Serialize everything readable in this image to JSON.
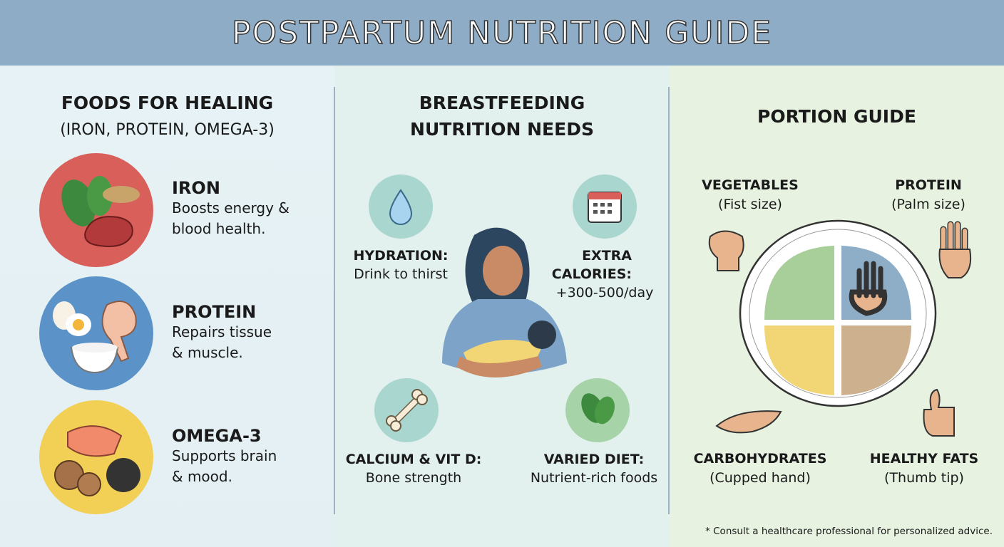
{
  "title": "POSTPARTUM NUTRITION GUIDE",
  "colors": {
    "header": "#8eacc5",
    "iron": "#d9605a",
    "protein": "#5b93c9",
    "omega3": "#f2cf55",
    "vegetables": "#a8cf9a",
    "protein_quadrant": "#8eaec8",
    "carbs": "#f2d574",
    "fats": "#cdb08e"
  },
  "healing": {
    "heading": "FOODS FOR HEALING",
    "subheading": "(IRON, PROTEIN, OMEGA-3)",
    "items": [
      {
        "title": "IRON",
        "desc1": "Boosts energy &",
        "desc2": "blood health.",
        "icon": "spinach-steak-lentils-icon"
      },
      {
        "title": "PROTEIN",
        "desc1": "Repairs tissue",
        "desc2": "& muscle.",
        "icon": "egg-chicken-yogurt-icon"
      },
      {
        "title": "OMEGA-3",
        "desc1": "Supports brain",
        "desc2": "& mood.",
        "icon": "salmon-walnut-seeds-icon"
      }
    ]
  },
  "breastfeeding": {
    "heading1": "BREASTFEEDING",
    "heading2": "NUTRITION NEEDS",
    "hydration": {
      "title": "HYDRATION:",
      "desc": "Drink to thirst",
      "icon": "water-drop-icon"
    },
    "calories": {
      "title1": "EXTRA",
      "title2": "CALORIES:",
      "desc": "+300-500/day",
      "icon": "calendar-icon"
    },
    "calcium": {
      "title": "CALCIUM & VIT D:",
      "desc": "Bone strength",
      "icon": "bone-icon"
    },
    "varied": {
      "title": "VARIED DIET:",
      "desc": "Nutrient-rich foods",
      "icon": "spinach-icon"
    }
  },
  "portion": {
    "heading": "PORTION GUIDE",
    "vegetables": {
      "title": "VEGETABLES",
      "desc": "(Fist size)",
      "icon": "fist-icon"
    },
    "protein": {
      "title": "PROTEIN",
      "desc": "(Palm size)",
      "icon": "palm-icon"
    },
    "carbs": {
      "title": "CARBOHYDRATES",
      "desc": "(Cupped hand)",
      "icon": "cupped-hand-icon"
    },
    "fats": {
      "title": "HEALTHY FATS",
      "desc": "(Thumb tip)",
      "icon": "thumb-icon"
    },
    "footnote": "* Consult a healthcare professional for personalized advice."
  }
}
